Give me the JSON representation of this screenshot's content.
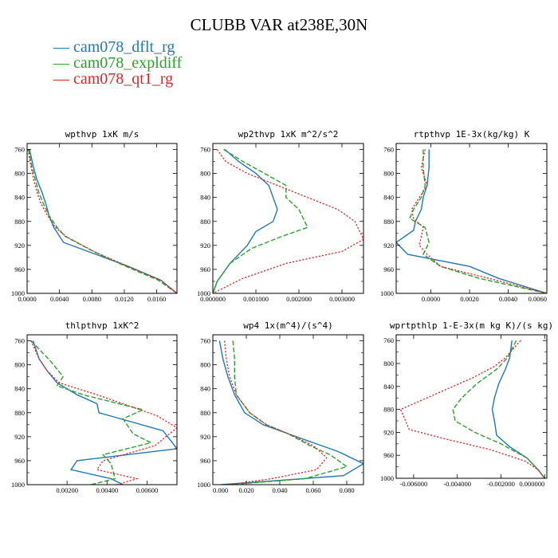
{
  "figure": {
    "title": "CLUBB VAR at238E,30N",
    "legend": [
      {
        "name": "cam078_dflt_rg",
        "color": "#1f77b4"
      },
      {
        "name": "cam078_expldiff",
        "color": "#2ca02c"
      },
      {
        "name": "cam078_qt1_rg",
        "color": "#d62728"
      }
    ]
  },
  "chart_data": [
    {
      "type": "line",
      "title": "wpthvp  1xK m/s",
      "xlim": [
        0,
        0.0185
      ],
      "ylim": [
        1000,
        750
      ],
      "y_inverted": true,
      "xticks": [
        0,
        0.004,
        0.008,
        0.012,
        0.016
      ],
      "xtick_labels": [
        "0.0000",
        "0.0040",
        "0.0080",
        "0.0120",
        "0.0160"
      ],
      "yticks": [
        760,
        800,
        840,
        880,
        920,
        960,
        1000
      ],
      "series": [
        {
          "name": "cam078_dflt_rg",
          "x": [
            0.0003,
            0.0008,
            0.0012,
            0.0018,
            0.0023,
            0.0027,
            0.0033,
            0.0045,
            0.0085,
            0.0125,
            0.0165,
            0.0185
          ],
          "y": [
            760,
            790,
            810,
            830,
            850,
            870,
            890,
            915,
            935,
            955,
            978,
            1000
          ]
        },
        {
          "name": "cam078_expldiff",
          "x": [
            0.0002,
            0.0006,
            0.001,
            0.0014,
            0.002,
            0.0027,
            0.0037,
            0.0047,
            0.0082,
            0.0122,
            0.0162,
            0.0185
          ],
          "y": [
            760,
            790,
            810,
            830,
            850,
            870,
            890,
            905,
            930,
            955,
            978,
            1000
          ]
        },
        {
          "name": "cam078_qt1_rg",
          "x": [
            0.0001,
            0.0005,
            0.0008,
            0.0012,
            0.0017,
            0.0025,
            0.0035,
            0.0048,
            0.0085,
            0.0125,
            0.0165,
            0.0185
          ],
          "y": [
            760,
            790,
            810,
            830,
            850,
            870,
            890,
            905,
            932,
            955,
            978,
            1000
          ]
        }
      ]
    },
    {
      "type": "line",
      "title": "wp2thvp  1xK m^2/s^2",
      "xlim": [
        0,
        0.0035
      ],
      "ylim": [
        1000,
        750
      ],
      "y_inverted": true,
      "xticks": [
        0,
        0.001,
        0.002,
        0.003
      ],
      "xtick_labels": [
        "0.000000",
        "0.001000",
        "0.002000",
        "0.003000"
      ],
      "yticks": [
        760,
        800,
        840,
        880,
        920,
        960,
        1000
      ],
      "series": [
        {
          "name": "cam078_dflt_rg",
          "x": [
            0.00028,
            0.0006,
            0.001,
            0.0013,
            0.0014,
            0.0015,
            0.0014,
            0.001,
            0.0008,
            0.0004,
            0.0001,
            0
          ],
          "y": [
            760,
            780,
            800,
            820,
            840,
            860,
            880,
            897,
            920,
            950,
            980,
            1000
          ]
        },
        {
          "name": "cam078_expldiff",
          "x": [
            0.00025,
            0.0007,
            0.0012,
            0.0017,
            0.0017,
            0.002,
            0.0022,
            0.0016,
            0.0009,
            0.0004,
            0.0001,
            0
          ],
          "y": [
            760,
            780,
            800,
            820,
            840,
            860,
            890,
            905,
            925,
            950,
            980,
            1000
          ]
        },
        {
          "name": "cam078_qt1_rg",
          "x": [
            0.0001,
            0.0003,
            0.0008,
            0.0015,
            0.0022,
            0.0029,
            0.0033,
            0.0035,
            0.003,
            0.0017,
            0.0007,
            0
          ],
          "y": [
            760,
            780,
            800,
            820,
            840,
            860,
            880,
            910,
            930,
            950,
            975,
            1000
          ]
        }
      ]
    },
    {
      "type": "line",
      "title": "rtpthvp  1E-3x(kg/kg) K",
      "xlim": [
        -0.0018,
        0.006
      ],
      "ylim": [
        1000,
        750
      ],
      "y_inverted": true,
      "xticks": [
        0,
        0.002,
        0.004,
        0.006
      ],
      "xtick_labels": [
        "0.0000",
        "0.0020",
        "0.0040",
        "0.0060"
      ],
      "yticks": [
        760,
        800,
        840,
        880,
        920,
        960,
        1000
      ],
      "series": [
        {
          "name": "cam078_dflt_rg",
          "x": [
            -0.0001,
            -0.0001,
            -0.0002,
            -0.0004,
            -0.0005,
            -0.0008,
            -0.0009,
            -0.0018,
            -0.0012,
            0.002,
            0.0035,
            0.006
          ],
          "y": [
            760,
            790,
            820,
            840,
            860,
            880,
            895,
            915,
            935,
            955,
            975,
            1000
          ]
        },
        {
          "name": "cam078_expldiff",
          "x": [
            -0.0004,
            -0.0004,
            -0.0003,
            -0.0005,
            -0.0009,
            -0.0011,
            -0.0003,
            -0.0001,
            -0.0004,
            0.0005,
            0.0025,
            0.006
          ],
          "y": [
            760,
            790,
            820,
            840,
            860,
            875,
            890,
            915,
            935,
            955,
            975,
            1000
          ]
        },
        {
          "name": "cam078_qt1_rg",
          "x": [
            -0.0003,
            -0.0005,
            -0.0002,
            -0.0006,
            -0.001,
            -0.0009,
            -0.0004,
            -0.0006,
            -0.0002,
            0.0005,
            0.003,
            0.006
          ],
          "y": [
            760,
            790,
            820,
            840,
            860,
            875,
            890,
            920,
            935,
            955,
            975,
            1000
          ]
        }
      ]
    },
    {
      "type": "line",
      "title": "thlpthvp  1xK^2",
      "xlim": [
        0,
        0.0075
      ],
      "ylim": [
        1000,
        750
      ],
      "y_inverted": true,
      "xticks": [
        0.002,
        0.004,
        0.006
      ],
      "xtick_labels": [
        "0.00200",
        "0.00400",
        "0.00600"
      ],
      "yticks": [
        760,
        800,
        840,
        880,
        920,
        960,
        1000
      ],
      "series": [
        {
          "name": "cam078_dflt_rg",
          "x": [
            0.0003,
            0.0006,
            0.001,
            0.0015,
            0.0025,
            0.0035,
            0.0036,
            0.0068,
            0.0075,
            0.0025,
            0.0022,
            0.0042,
            0.0048
          ],
          "y": [
            760,
            790,
            810,
            830,
            850,
            865,
            880,
            910,
            940,
            960,
            975,
            990,
            1000
          ]
        },
        {
          "name": "cam078_expldiff",
          "x": [
            0.0002,
            0.0012,
            0.0018,
            0.0015,
            0.0028,
            0.0058,
            0.0048,
            0.0053,
            0.0062,
            0.0038,
            0.0042,
            0.0044,
            0.0032
          ],
          "y": [
            760,
            795,
            820,
            835,
            850,
            875,
            890,
            915,
            930,
            950,
            965,
            990,
            1000
          ]
        },
        {
          "name": "cam078_qt1_rg",
          "x": [
            0.0002,
            0.0006,
            0.001,
            0.0016,
            0.0035,
            0.0065,
            0.0075,
            0.0064,
            0.0038,
            0.0035,
            0.0055,
            0.0045
          ],
          "y": [
            760,
            790,
            810,
            830,
            850,
            885,
            905,
            935,
            960,
            975,
            990,
            1000
          ]
        }
      ]
    },
    {
      "type": "line",
      "title": "wp4  1x(m^4)/(s^4)",
      "xlim": [
        0,
        0.09
      ],
      "ylim": [
        1000,
        750
      ],
      "y_inverted": true,
      "xticks": [
        0,
        0.02,
        0.04,
        0.06,
        0.08
      ],
      "xtick_labels": [
        "0.000",
        "0.020",
        "0.040",
        "0.060",
        "0.080"
      ],
      "yticks": [
        760,
        800,
        840,
        880,
        920,
        960,
        1000
      ],
      "series": [
        {
          "name": "cam078_dflt_rg",
          "x": [
            0.004,
            0.006,
            0.009,
            0.013,
            0.019,
            0.03,
            0.045,
            0.06,
            0.075,
            0.09,
            0.078,
            0.005
          ],
          "y": [
            760,
            790,
            820,
            850,
            880,
            900,
            915,
            930,
            945,
            965,
            985,
            1000
          ]
        },
        {
          "name": "cam078_expldiff",
          "x": [
            0.012,
            0.013,
            0.013,
            0.014,
            0.022,
            0.032,
            0.045,
            0.058,
            0.07,
            0.08,
            0.055,
            0.01
          ],
          "y": [
            760,
            790,
            820,
            850,
            880,
            900,
            915,
            935,
            950,
            970,
            990,
            1000
          ]
        },
        {
          "name": "cam078_qt1_rg",
          "x": [
            0.007,
            0.008,
            0.01,
            0.014,
            0.022,
            0.032,
            0.045,
            0.06,
            0.068,
            0.062,
            0.035,
            0.01
          ],
          "y": [
            760,
            790,
            820,
            850,
            880,
            900,
            915,
            935,
            955,
            975,
            990,
            1000
          ]
        }
      ]
    },
    {
      "type": "line",
      "title": "wprtpthlp  1-E-3x(m kg K)/(s kg)",
      "xlim": [
        -0.0068,
        0.0001
      ],
      "ylim": [
        1000,
        750
      ],
      "y_inverted": true,
      "xticks": [
        -0.006,
        -0.004,
        -0.002,
        0
      ],
      "xtick_labels": [
        "-0.006000",
        "-0.004000",
        "-0.002000",
        "0.000000"
      ],
      "yticks": [
        760,
        800,
        840,
        880,
        920,
        960,
        1000
      ],
      "series": [
        {
          "name": "cam078_dflt_rg",
          "x": [
            -0.0015,
            -0.0016,
            -0.0018,
            -0.0021,
            -0.0023,
            -0.0024,
            -0.0023,
            -0.0022,
            -0.0016,
            -0.0008,
            -0.0003,
            0
          ],
          "y": [
            760,
            790,
            810,
            835,
            860,
            880,
            900,
            925,
            945,
            965,
            985,
            1000
          ]
        },
        {
          "name": "cam078_expldiff",
          "x": [
            -0.0013,
            -0.0017,
            -0.0022,
            -0.0031,
            -0.0038,
            -0.0042,
            -0.0041,
            -0.0032,
            -0.002,
            -0.0008,
            -0.0003,
            0
          ],
          "y": [
            760,
            790,
            810,
            835,
            860,
            880,
            900,
            920,
            940,
            965,
            985,
            1000
          ]
        },
        {
          "name": "cam078_qt1_rg",
          "x": [
            -0.0011,
            -0.0018,
            -0.0023,
            -0.0033,
            -0.0048,
            -0.0066,
            -0.0062,
            -0.0045,
            -0.0025,
            -0.0009,
            -0.0003,
            0
          ],
          "y": [
            760,
            790,
            805,
            825,
            850,
            880,
            915,
            932,
            950,
            970,
            985,
            1000
          ]
        }
      ]
    }
  ]
}
